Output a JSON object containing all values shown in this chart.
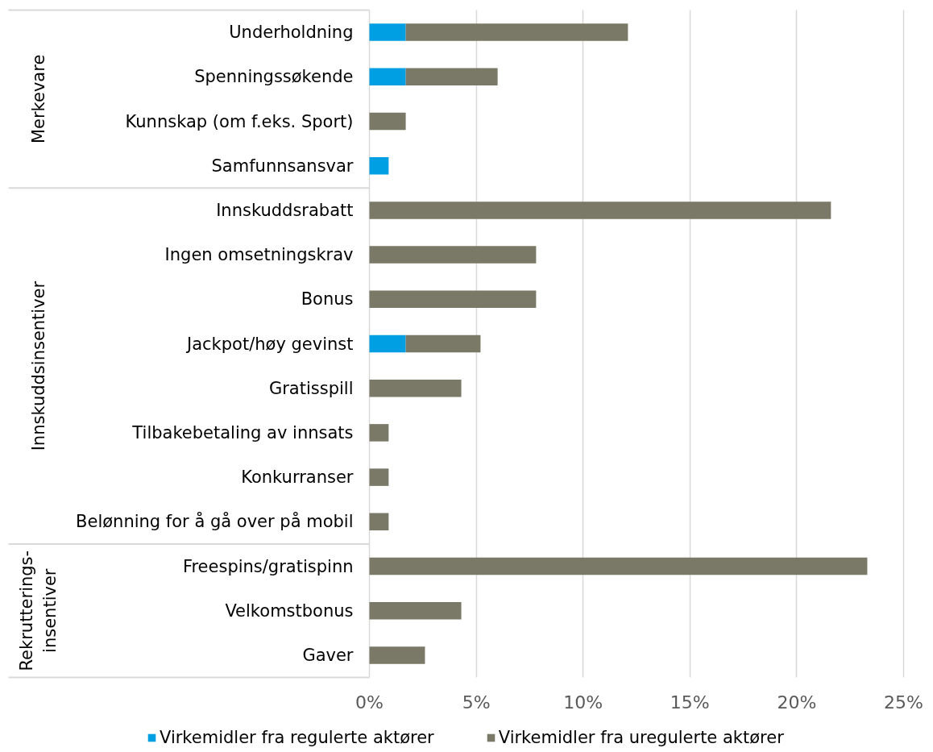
{
  "chart_data": {
    "type": "bar",
    "orientation": "horizontal",
    "stacked": true,
    "categories": [
      "Underholdning",
      "Spenningssøkende",
      "Kunnskap (om f.eks. Sport)",
      "Samfunnsansvar",
      "Innskuddsrabatt",
      "Ingen omsetningskrav",
      "Bonus",
      "Jackpot/høy gevinst",
      "Gratisspill",
      "Tilbakebetaling av innsats",
      "Konkurranser",
      "Belønning for å gå over på mobil",
      "Freespins/gratispinn",
      "Velkomstbonus",
      "Gaver"
    ],
    "series": [
      {
        "name": "Virkemidler fra regulerte aktører",
        "color": "#009fe3",
        "values": [
          1.7,
          1.7,
          null,
          0.9,
          null,
          null,
          null,
          1.7,
          null,
          null,
          null,
          null,
          null,
          null,
          null
        ]
      },
      {
        "name": "Virkemidler fra uregulerte aktører",
        "color": "#7a7866",
        "values": [
          10.4,
          4.3,
          1.7,
          null,
          21.6,
          7.8,
          7.8,
          3.5,
          4.3,
          0.9,
          0.9,
          0.9,
          23.3,
          4.3,
          2.6
        ]
      }
    ],
    "xlim": [
      0,
      25
    ],
    "xticks": [
      {
        "value": 0,
        "label": "0%"
      },
      {
        "value": 5,
        "label": "5%"
      },
      {
        "value": 10,
        "label": "10%"
      },
      {
        "value": 15,
        "label": "15%"
      },
      {
        "value": 20,
        "label": "20%"
      },
      {
        "value": 25,
        "label": "25%"
      }
    ],
    "grid": "x",
    "legend": "bottom",
    "annotations": [
      "Merkevare",
      "Innskuddsinsentiver",
      "Rekrutterings-\ninsentiver"
    ]
  }
}
